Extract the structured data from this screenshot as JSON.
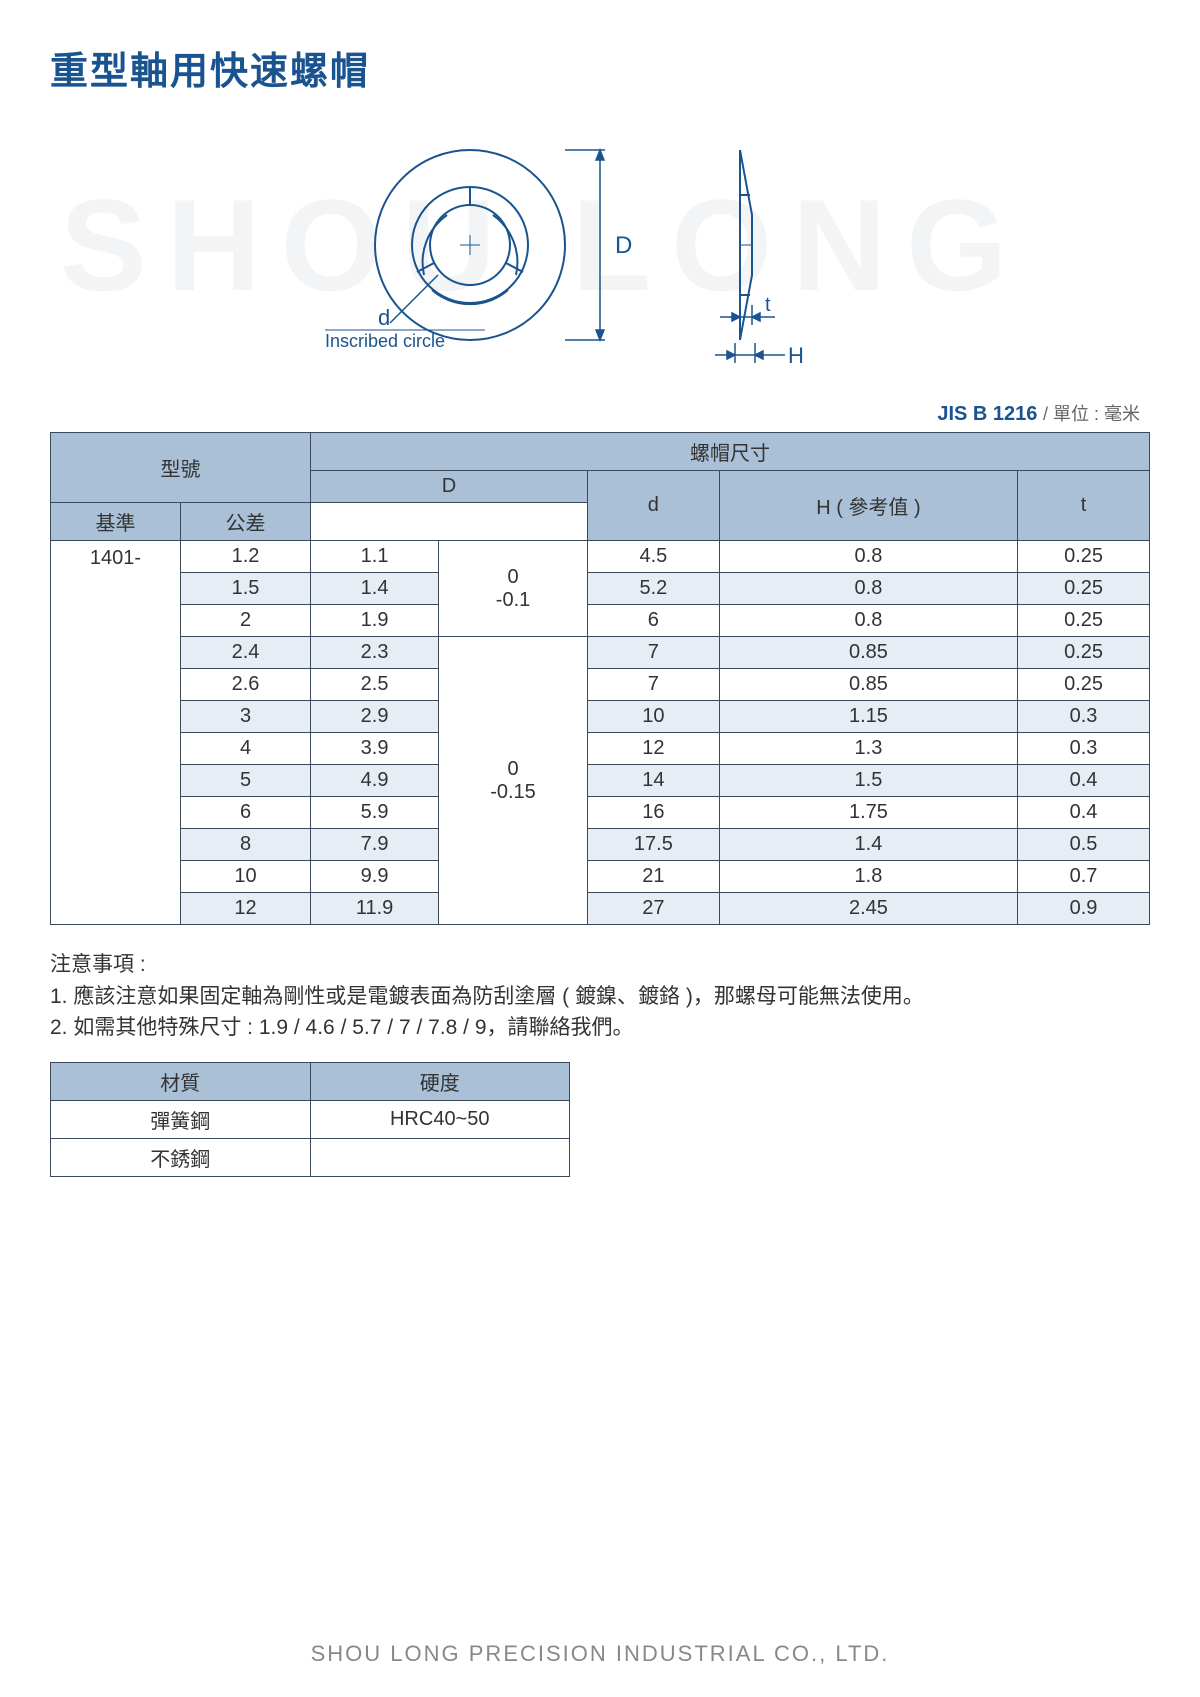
{
  "colors": {
    "title": "#1a5490",
    "header_bg": "#a9c0d6",
    "zebra_bg": "#e6edf4",
    "border": "#3a4a5a",
    "text": "#333333",
    "watermark": "#f2f4f6",
    "footer": "#888888",
    "diagram_stroke": "#1a5490"
  },
  "page": {
    "title": "重型軸用快速螺帽",
    "watermark": "SHOU LONG",
    "footer": "SHOU LONG PRECISION INDUSTRIAL CO., LTD."
  },
  "diagram": {
    "inscribed_label": "Inscribed circle",
    "d_label": "d",
    "D_label": "D",
    "H_label": "H",
    "t_label": "t"
  },
  "standard": {
    "code": "JIS B 1216",
    "unit_label": "/ 單位 : 毫米"
  },
  "table": {
    "header_model": "型號",
    "header_capdims": "螺帽尺寸",
    "header_D": "D",
    "header_D_basis": "基準",
    "header_D_tol": "公差",
    "header_d": "d",
    "header_H": "H ( 參考值 )",
    "header_t": "t",
    "model_prefix": "1401-",
    "tol_group1": "0\n-0.1",
    "tol_group2": "0\n-0.15",
    "rows": [
      {
        "size": "1.2",
        "D": "1.1",
        "d": "4.5",
        "H": "0.8",
        "t": "0.25",
        "group": 1,
        "zebra": false
      },
      {
        "size": "1.5",
        "D": "1.4",
        "d": "5.2",
        "H": "0.8",
        "t": "0.25",
        "group": 1,
        "zebra": true
      },
      {
        "size": "2",
        "D": "1.9",
        "d": "6",
        "H": "0.8",
        "t": "0.25",
        "group": 1,
        "zebra": false
      },
      {
        "size": "2.4",
        "D": "2.3",
        "d": "7",
        "H": "0.85",
        "t": "0.25",
        "group": 2,
        "zebra": true
      },
      {
        "size": "2.6",
        "D": "2.5",
        "d": "7",
        "H": "0.85",
        "t": "0.25",
        "group": 2,
        "zebra": false
      },
      {
        "size": "3",
        "D": "2.9",
        "d": "10",
        "H": "1.15",
        "t": "0.3",
        "group": 2,
        "zebra": true
      },
      {
        "size": "4",
        "D": "3.9",
        "d": "12",
        "H": "1.3",
        "t": "0.3",
        "group": 2,
        "zebra": false
      },
      {
        "size": "5",
        "D": "4.9",
        "d": "14",
        "H": "1.5",
        "t": "0.4",
        "group": 2,
        "zebra": true
      },
      {
        "size": "6",
        "D": "5.9",
        "d": "16",
        "H": "1.75",
        "t": "0.4",
        "group": 2,
        "zebra": false
      },
      {
        "size": "8",
        "D": "7.9",
        "d": "17.5",
        "H": "1.4",
        "t": "0.5",
        "group": 2,
        "zebra": true
      },
      {
        "size": "10",
        "D": "9.9",
        "d": "21",
        "H": "1.8",
        "t": "0.7",
        "group": 2,
        "zebra": false
      },
      {
        "size": "12",
        "D": "11.9",
        "d": "27",
        "H": "2.45",
        "t": "0.9",
        "group": 2,
        "zebra": true
      }
    ]
  },
  "notes": {
    "heading": "注意事項 :",
    "note1": "1. 應該注意如果固定軸為剛性或是電鍍表面為防刮塗層 ( 鍍鎳、鍍鉻 )，那螺母可能無法使用。",
    "note2": "2. 如需其他特殊尺寸 : 1.9 / 4.6 / 5.7 / 7 / 7.8 / 9，請聯絡我們。"
  },
  "material": {
    "col1": "材質",
    "col2": "硬度",
    "rows": [
      {
        "mat": "彈簧鋼",
        "hard": "HRC40~50"
      },
      {
        "mat": "不銹鋼",
        "hard": ""
      }
    ]
  }
}
